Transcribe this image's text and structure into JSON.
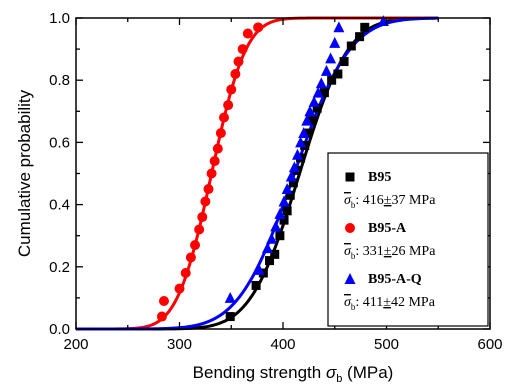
{
  "chart_data": {
    "type": "scatter",
    "xlabel": "Bending strength σb (MPa)",
    "ylabel": "Cumulative probability",
    "xlim": [
      200,
      600
    ],
    "ylim": [
      0.0,
      1.0
    ],
    "x_ticks": [
      "200",
      "300",
      "400",
      "500",
      "600"
    ],
    "y_ticks": [
      "0.0",
      "0.2",
      "0.4",
      "0.6",
      "0.8",
      "1.0"
    ],
    "grid": false,
    "legend_position": "bottom-right",
    "series": [
      {
        "name": "B95",
        "stat": "σb: 416±37 MPa",
        "mean": 416,
        "std": 37,
        "color": "#000000",
        "marker": "square",
        "points": [
          [
            349,
            0.04
          ],
          [
            374,
            0.14
          ],
          [
            381,
            0.18
          ],
          [
            387,
            0.22
          ],
          [
            392,
            0.24
          ],
          [
            397,
            0.3
          ],
          [
            401,
            0.35
          ],
          [
            404,
            0.38
          ],
          [
            407,
            0.43
          ],
          [
            410,
            0.47
          ],
          [
            413,
            0.51
          ],
          [
            417,
            0.55
          ],
          [
            421,
            0.59
          ],
          [
            424,
            0.63
          ],
          [
            428,
            0.67
          ],
          [
            433,
            0.71
          ],
          [
            440,
            0.76
          ],
          [
            447,
            0.8
          ],
          [
            453,
            0.82
          ],
          [
            459,
            0.86
          ],
          [
            466,
            0.91
          ],
          [
            474,
            0.94
          ],
          [
            479,
            0.97
          ]
        ]
      },
      {
        "name": "B95-A",
        "stat": "σb: 331±26 MPa",
        "mean": 331,
        "std": 26,
        "color": "#ff0000",
        "marker": "circle",
        "points": [
          [
            283,
            0.04
          ],
          [
            285,
            0.09
          ],
          [
            300,
            0.13
          ],
          [
            306,
            0.18
          ],
          [
            311,
            0.23
          ],
          [
            315,
            0.27
          ],
          [
            319,
            0.32
          ],
          [
            322,
            0.36
          ],
          [
            325,
            0.41
          ],
          [
            328,
            0.45
          ],
          [
            331,
            0.5
          ],
          [
            334,
            0.54
          ],
          [
            337,
            0.58
          ],
          [
            340,
            0.63
          ],
          [
            343,
            0.68
          ],
          [
            347,
            0.72
          ],
          [
            350,
            0.77
          ],
          [
            354,
            0.82
          ],
          [
            357,
            0.86
          ],
          [
            361,
            0.9
          ],
          [
            366,
            0.95
          ],
          [
            376,
            0.97
          ]
        ]
      },
      {
        "name": "B95-A-Q",
        "stat": "σb: 411±42 MPa",
        "mean": 411,
        "std": 42,
        "color": "#0000ff",
        "marker": "triangle",
        "points": [
          [
            349,
            0.1
          ],
          [
            377,
            0.19
          ],
          [
            385,
            0.26
          ],
          [
            389,
            0.29
          ],
          [
            393,
            0.33
          ],
          [
            397,
            0.37
          ],
          [
            401,
            0.41
          ],
          [
            404,
            0.45
          ],
          [
            408,
            0.49
          ],
          [
            411,
            0.52
          ],
          [
            414,
            0.56
          ],
          [
            417,
            0.6
          ],
          [
            420,
            0.63
          ],
          [
            423,
            0.67
          ],
          [
            426,
            0.7
          ],
          [
            430,
            0.73
          ],
          [
            434,
            0.76
          ],
          [
            437,
            0.79
          ],
          [
            442,
            0.83
          ],
          [
            446,
            0.87
          ],
          [
            450,
            0.92
          ],
          [
            454,
            0.97
          ],
          [
            497,
            0.99
          ]
        ]
      }
    ]
  }
}
